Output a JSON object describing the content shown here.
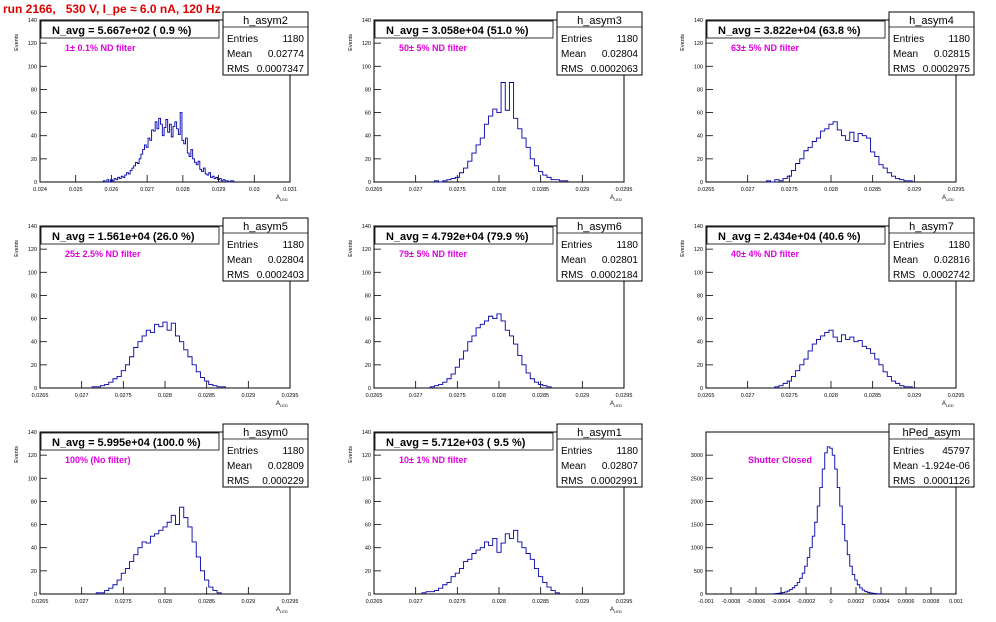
{
  "run_title": "run 2166,   530 V, I_pe ≈ 6.0 nA, 120 Hz",
  "colors": {
    "histogram_line": "#0000aa",
    "annotation": "#e000e0",
    "title": "#e00000"
  },
  "chart_data": [
    {
      "type": "histogram",
      "name": "h_asym2",
      "title": "N_avg = 5.667e+02 ( 0.9 %)",
      "annotation": "1± 0.1% ND filter",
      "stats": [
        [
          "Entries",
          "1180"
        ],
        [
          "Mean",
          "0.02774"
        ],
        [
          "RMS",
          "0.0007347"
        ]
      ],
      "ylabel": "Events",
      "xlabel": "A_LED",
      "xlim": [
        0.024,
        0.031
      ],
      "ylim": [
        0,
        140
      ],
      "xticks": [
        "0.024",
        "0.025",
        "0.026",
        "0.027",
        "0.028",
        "0.029",
        "0.03",
        "0.031"
      ],
      "yticks": [
        "0",
        "20",
        "40",
        "60",
        "80",
        "100",
        "120",
        "140"
      ],
      "bins_x": [
        0.0258,
        0.02585,
        0.0259,
        0.02595,
        0.026,
        0.02605,
        0.0261,
        0.02615,
        0.0262,
        0.02625,
        0.0263,
        0.02635,
        0.0264,
        0.02645,
        0.0265,
        0.02655,
        0.0266,
        0.02665,
        0.0267,
        0.02675,
        0.0268,
        0.02685,
        0.0269,
        0.02695,
        0.027,
        0.02705,
        0.0271,
        0.02715,
        0.0272,
        0.02725,
        0.0273,
        0.02735,
        0.0274,
        0.02745,
        0.0275,
        0.02755,
        0.0276,
        0.02765,
        0.0277,
        0.02775,
        0.0278,
        0.02785,
        0.0279,
        0.02795,
        0.028,
        0.02805,
        0.0281,
        0.02815,
        0.0282,
        0.02825,
        0.0283,
        0.02835,
        0.0284,
        0.02845,
        0.0285,
        0.02855,
        0.0286,
        0.02865,
        0.0287,
        0.02875,
        0.0288,
        0.02885,
        0.0289,
        0.02895,
        0.029,
        0.02905,
        0.0291,
        0.02915,
        0.0292,
        0.02925,
        0.0293,
        0.02935,
        0.0294
      ],
      "bins_y": [
        1,
        0,
        2,
        0,
        2,
        1,
        3,
        2,
        4,
        3,
        5,
        4,
        6,
        8,
        7,
        10,
        12,
        14,
        17,
        16,
        20,
        24,
        28,
        32,
        30,
        38,
        36,
        45,
        44,
        52,
        46,
        55,
        50,
        40,
        47,
        54,
        43,
        50,
        39,
        48,
        52,
        46,
        41,
        60,
        36,
        33,
        38,
        25,
        22,
        28,
        20,
        17,
        15,
        18,
        11,
        9,
        12,
        7,
        6,
        8,
        4,
        5,
        3,
        4,
        2,
        3,
        1,
        2,
        1,
        1,
        0,
        1,
        1
      ]
    },
    {
      "type": "histogram",
      "name": "h_asym3",
      "title": "N_avg = 3.058e+04 (51.0 %)",
      "annotation": "50± 5% ND filter",
      "stats": [
        [
          "Entries",
          "1180"
        ],
        [
          "Mean",
          "0.02804"
        ],
        [
          "RMS",
          "0.0002063"
        ]
      ],
      "ylabel": "Events",
      "xlabel": "A_LED",
      "xlim": [
        0.0265,
        0.0295
      ],
      "ylim": [
        0,
        140
      ],
      "xticks": [
        "0.0265",
        "0.027",
        "0.0275",
        "0.028",
        "0.0285",
        "0.029",
        "0.0295"
      ],
      "yticks": [
        "0",
        "20",
        "40",
        "60",
        "80",
        "100",
        "120",
        "140"
      ],
      "bins_x": [
        0.02725,
        0.0273,
        0.02735,
        0.0274,
        0.02745,
        0.0275,
        0.02755,
        0.0276,
        0.02765,
        0.0277,
        0.02775,
        0.0278,
        0.02785,
        0.0279,
        0.02795,
        0.028,
        0.02805,
        0.0281,
        0.02815,
        0.0282,
        0.02825,
        0.0283,
        0.02835,
        0.0284,
        0.02845,
        0.0285,
        0.02855,
        0.0286,
        0.02865,
        0.0287,
        0.02875,
        0.0288
      ],
      "bins_y": [
        1,
        0,
        1,
        2,
        3,
        4,
        8,
        12,
        18,
        25,
        32,
        38,
        50,
        57,
        63,
        60,
        86,
        62,
        86,
        55,
        46,
        38,
        30,
        20,
        14,
        9,
        6,
        4,
        2,
        2,
        1,
        1
      ]
    },
    {
      "type": "histogram",
      "name": "h_asym4",
      "title": "N_avg = 3.822e+04 (63.8 %)",
      "annotation": "63± 5% ND filter",
      "stats": [
        [
          "Entries",
          "1180"
        ],
        [
          "Mean",
          "0.02815"
        ],
        [
          "RMS",
          "0.0002975"
        ]
      ],
      "ylabel": "Events",
      "xlabel": "A_LED",
      "xlim": [
        0.0265,
        0.0295
      ],
      "ylim": [
        0,
        140
      ],
      "xticks": [
        "0.0265",
        "0.027",
        "0.0275",
        "0.028",
        "0.0285",
        "0.029",
        "0.0295"
      ],
      "yticks": [
        "0",
        "20",
        "40",
        "60",
        "80",
        "100",
        "120",
        "140"
      ],
      "bins_x": [
        0.02725,
        0.0273,
        0.02735,
        0.0274,
        0.02745,
        0.0275,
        0.02755,
        0.0276,
        0.02765,
        0.0277,
        0.02775,
        0.0278,
        0.02785,
        0.0279,
        0.02795,
        0.028,
        0.02805,
        0.0281,
        0.02815,
        0.0282,
        0.02825,
        0.0283,
        0.02835,
        0.0284,
        0.02845,
        0.0285,
        0.02855,
        0.0286,
        0.02865,
        0.0287,
        0.02875,
        0.0288,
        0.02885,
        0.0289,
        0.02895
      ],
      "bins_y": [
        1,
        0,
        2,
        1,
        3,
        5,
        10,
        16,
        20,
        27,
        30,
        35,
        38,
        44,
        46,
        50,
        52,
        45,
        40,
        36,
        43,
        35,
        42,
        40,
        38,
        26,
        22,
        15,
        12,
        8,
        5,
        3,
        2,
        1,
        1
      ]
    },
    {
      "type": "histogram",
      "name": "h_asym5",
      "title": "N_avg = 1.561e+04 (26.0 %)",
      "annotation": "25± 2.5% ND filter",
      "stats": [
        [
          "Entries",
          "1180"
        ],
        [
          "Mean",
          "0.02804"
        ],
        [
          "RMS",
          "0.0002403"
        ]
      ],
      "ylabel": "Events",
      "xlabel": "A_LED",
      "xlim": [
        0.0265,
        0.0295
      ],
      "ylim": [
        0,
        140
      ],
      "xticks": [
        "0.0265",
        "0.027",
        "0.0275",
        "0.028",
        "0.0285",
        "0.029",
        "0.0295"
      ],
      "yticks": [
        "0",
        "20",
        "40",
        "60",
        "80",
        "100",
        "120",
        "140"
      ],
      "bins_x": [
        0.02715,
        0.0272,
        0.02725,
        0.0273,
        0.02735,
        0.0274,
        0.02745,
        0.0275,
        0.02755,
        0.0276,
        0.02765,
        0.0277,
        0.02775,
        0.0278,
        0.02785,
        0.0279,
        0.02795,
        0.028,
        0.02805,
        0.0281,
        0.02815,
        0.0282,
        0.02825,
        0.0283,
        0.02835,
        0.0284,
        0.02845,
        0.0285,
        0.02855,
        0.0286,
        0.02865,
        0.0287
      ],
      "bins_y": [
        1,
        1,
        2,
        3,
        5,
        8,
        10,
        15,
        20,
        27,
        35,
        40,
        45,
        50,
        48,
        55,
        53,
        57,
        50,
        56,
        45,
        40,
        33,
        27,
        20,
        14,
        9,
        6,
        3,
        2,
        1,
        1
      ]
    },
    {
      "type": "histogram",
      "name": "h_asym6",
      "title": "N_avg = 4.792e+04 (79.9 %)",
      "annotation": "79± 5% ND filter",
      "stats": [
        [
          "Entries",
          "1180"
        ],
        [
          "Mean",
          "0.02801"
        ],
        [
          "RMS",
          "0.0002184"
        ]
      ],
      "ylabel": "Events",
      "xlabel": "A_LED",
      "xlim": [
        0.0265,
        0.0295
      ],
      "ylim": [
        0,
        140
      ],
      "xticks": [
        "0.0265",
        "0.027",
        "0.0275",
        "0.028",
        "0.0285",
        "0.029",
        "0.0295"
      ],
      "yticks": [
        "0",
        "20",
        "40",
        "60",
        "80",
        "100",
        "120",
        "140"
      ],
      "bins_x": [
        0.0272,
        0.02725,
        0.0273,
        0.02735,
        0.0274,
        0.02745,
        0.0275,
        0.02755,
        0.0276,
        0.02765,
        0.0277,
        0.02775,
        0.0278,
        0.02785,
        0.0279,
        0.02795,
        0.028,
        0.02805,
        0.0281,
        0.02815,
        0.0282,
        0.02825,
        0.0283,
        0.02835,
        0.0284,
        0.02845,
        0.0285,
        0.02855,
        0.0286
      ],
      "bins_y": [
        1,
        2,
        3,
        5,
        8,
        12,
        18,
        25,
        32,
        40,
        45,
        52,
        55,
        58,
        62,
        60,
        64,
        58,
        50,
        45,
        38,
        28,
        20,
        13,
        8,
        5,
        3,
        2,
        1
      ]
    },
    {
      "type": "histogram",
      "name": "h_asym7",
      "title": "N_avg = 2.434e+04 (40.6 %)",
      "annotation": "40± 4% ND filter",
      "stats": [
        [
          "Entries",
          "1180"
        ],
        [
          "Mean",
          "0.02816"
        ],
        [
          "RMS",
          "0.0002742"
        ]
      ],
      "ylabel": "Events",
      "xlabel": "A_LED",
      "xlim": [
        0.0265,
        0.0295
      ],
      "ylim": [
        0,
        140
      ],
      "xticks": [
        "0.0265",
        "0.027",
        "0.0275",
        "0.028",
        "0.0285",
        "0.029",
        "0.0295"
      ],
      "yticks": [
        "0",
        "20",
        "40",
        "60",
        "80",
        "100",
        "120",
        "140"
      ],
      "bins_x": [
        0.02735,
        0.0274,
        0.02745,
        0.0275,
        0.02755,
        0.0276,
        0.02765,
        0.0277,
        0.02775,
        0.0278,
        0.02785,
        0.0279,
        0.02795,
        0.028,
        0.02805,
        0.0281,
        0.02815,
        0.0282,
        0.02825,
        0.0283,
        0.02835,
        0.0284,
        0.02845,
        0.0285,
        0.02855,
        0.0286,
        0.02865,
        0.0287,
        0.02875,
        0.0288,
        0.02885,
        0.0289,
        0.02895
      ],
      "bins_y": [
        1,
        2,
        4,
        6,
        10,
        15,
        20,
        25,
        32,
        38,
        42,
        45,
        48,
        50,
        44,
        40,
        46,
        42,
        44,
        40,
        41,
        36,
        34,
        30,
        25,
        20,
        14,
        10,
        6,
        4,
        2,
        1,
        1
      ]
    },
    {
      "type": "histogram",
      "name": "h_asym0",
      "title": "N_avg = 5.995e+04 (100.0 %)",
      "annotation": "100% (No filter)",
      "stats": [
        [
          "Entries",
          "1180"
        ],
        [
          "Mean",
          "0.02809"
        ],
        [
          "RMS",
          "0.000229"
        ]
      ],
      "ylabel": "Events",
      "xlabel": "A_LED",
      "xlim": [
        0.0265,
        0.0295
      ],
      "ylim": [
        0,
        140
      ],
      "xticks": [
        "0.0265",
        "0.027",
        "0.0275",
        "0.028",
        "0.0285",
        "0.029",
        "0.0295"
      ],
      "yticks": [
        "0",
        "20",
        "40",
        "60",
        "80",
        "100",
        "120",
        "140"
      ],
      "bins_x": [
        0.0272,
        0.02725,
        0.0273,
        0.02735,
        0.0274,
        0.02745,
        0.0275,
        0.02755,
        0.0276,
        0.02765,
        0.0277,
        0.02775,
        0.0278,
        0.02785,
        0.0279,
        0.02795,
        0.028,
        0.02805,
        0.0281,
        0.02815,
        0.0282,
        0.02825,
        0.0283,
        0.02835,
        0.0284,
        0.02845,
        0.0285,
        0.02855,
        0.0286,
        0.02865
      ],
      "bins_y": [
        1,
        1,
        3,
        5,
        8,
        12,
        18,
        22,
        28,
        34,
        40,
        45,
        44,
        50,
        52,
        55,
        58,
        62,
        68,
        60,
        75,
        66,
        58,
        45,
        32,
        20,
        12,
        6,
        3,
        1
      ]
    },
    {
      "type": "histogram",
      "name": "h_asym1",
      "title": "N_avg = 5.712e+03 ( 9.5 %)",
      "annotation": "10± 1% ND filter",
      "stats": [
        [
          "Entries",
          "1180"
        ],
        [
          "Mean",
          "0.02807"
        ],
        [
          "RMS",
          "0.0002991"
        ]
      ],
      "ylabel": "Events",
      "xlabel": "A_LED",
      "xlim": [
        0.0265,
        0.0295
      ],
      "ylim": [
        0,
        140
      ],
      "xticks": [
        "0.0265",
        "0.027",
        "0.0275",
        "0.028",
        "0.0285",
        "0.029",
        "0.0295"
      ],
      "yticks": [
        "0",
        "20",
        "40",
        "60",
        "80",
        "100",
        "120",
        "140"
      ],
      "bins_x": [
        0.0271,
        0.02715,
        0.0272,
        0.02725,
        0.0273,
        0.02735,
        0.0274,
        0.02745,
        0.0275,
        0.02755,
        0.0276,
        0.02765,
        0.0277,
        0.02775,
        0.0278,
        0.02785,
        0.0279,
        0.02795,
        0.028,
        0.02805,
        0.0281,
        0.02815,
        0.0282,
        0.02825,
        0.0283,
        0.02835,
        0.0284,
        0.02845,
        0.0285,
        0.02855,
        0.0286,
        0.02865,
        0.0287
      ],
      "bins_y": [
        1,
        2,
        2,
        3,
        5,
        8,
        10,
        15,
        18,
        22,
        28,
        30,
        35,
        38,
        40,
        45,
        42,
        48,
        36,
        44,
        52,
        48,
        55,
        45,
        40,
        35,
        30,
        22,
        15,
        10,
        6,
        3,
        1
      ]
    },
    {
      "type": "histogram",
      "name": "hPed_asym",
      "title": "",
      "annotation": "Shutter Closed",
      "stats": [
        [
          "Entries",
          "45797"
        ],
        [
          "Mean",
          "-1.924e-06"
        ],
        [
          "RMS",
          "0.0001126"
        ]
      ],
      "ylabel": "",
      "xlabel": "",
      "xlim": [
        -0.001,
        0.001
      ],
      "ylim": [
        0,
        3500
      ],
      "xticks": [
        "-0.001",
        "-0.0008",
        "-0.0006",
        "-0.0004",
        "-0.0002",
        "0",
        "0.0002",
        "0.0004",
        "0.0006",
        "0.0008",
        "0.001"
      ],
      "yticks": [
        "0",
        "500",
        "1000",
        "1500",
        "2000",
        "2500",
        "3000"
      ],
      "bins_x": [
        -0.00046,
        -0.00044,
        -0.00042,
        -0.0004,
        -0.00038,
        -0.00036,
        -0.00034,
        -0.00032,
        -0.0003,
        -0.00028,
        -0.00026,
        -0.00024,
        -0.00022,
        -0.0002,
        -0.00018,
        -0.00016,
        -0.00014,
        -0.00012,
        -0.0001,
        -8e-05,
        -6e-05,
        -4e-05,
        -2e-05,
        0,
        2e-05,
        4e-05,
        6e-05,
        8e-05,
        0.0001,
        0.00012,
        0.00014,
        0.00016,
        0.00018,
        0.0002,
        0.00022,
        0.00024,
        0.00026,
        0.00028,
        0.0003,
        0.00032,
        0.00034,
        0.00036,
        0.00038,
        0.0004
      ],
      "bins_y": [
        5,
        10,
        15,
        20,
        30,
        45,
        65,
        95,
        135,
        185,
        250,
        340,
        450,
        600,
        790,
        1000,
        1250,
        1550,
        1900,
        2300,
        2700,
        3050,
        3180,
        3150,
        3000,
        2700,
        2300,
        1900,
        1500,
        1150,
        850,
        600,
        420,
        300,
        200,
        130,
        85,
        55,
        35,
        22,
        14,
        8,
        5,
        3
      ]
    }
  ]
}
